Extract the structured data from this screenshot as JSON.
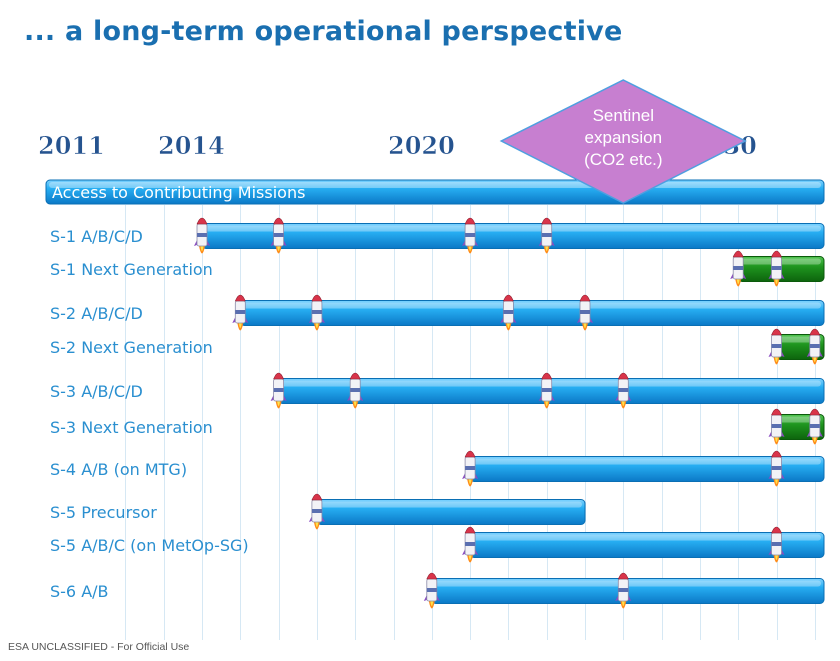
{
  "title": "... a long-term operational perspective",
  "footer": "ESA UNCLASSIFIED - For Official Use",
  "colors": {
    "title": "#1a6fb0",
    "label": "#2a8fd0",
    "year": "#25538f",
    "blue_bar": "#1da1ec",
    "green_bar": "#1f8f1f",
    "callout": "#c77fd0"
  },
  "chart_data": {
    "type": "gantt",
    "year_labels": [
      "2011",
      "2014",
      "2020",
      "2030"
    ],
    "callout": {
      "lines": [
        "Sentinel",
        "expansion",
        "(CO2 etc.)"
      ],
      "year": 2025
    },
    "header_bar": {
      "label": "Access to Contributing Missions",
      "start": 2011,
      "end": 2031
    },
    "rows": [
      {
        "label": "S-1 A/B/C/D",
        "start": 2014,
        "end": 2031,
        "color": "blue",
        "launches": [
          2014,
          2016,
          2021,
          2023
        ]
      },
      {
        "label": "S-1 Next Generation",
        "start": 2028,
        "end": 2031,
        "color": "green",
        "launches": [
          2028,
          2029
        ]
      },
      {
        "label": "S-2 A/B/C/D",
        "start": 2015,
        "end": 2031,
        "color": "blue",
        "launches": [
          2015,
          2017,
          2022,
          2024
        ]
      },
      {
        "label": "S-2 Next Generation",
        "start": 2029,
        "end": 2031,
        "color": "green",
        "launches": [
          2029,
          2030
        ]
      },
      {
        "label": "S-3 A/B/C/D",
        "start": 2016,
        "end": 2031,
        "color": "blue",
        "launches": [
          2016,
          2018,
          2023,
          2025
        ]
      },
      {
        "label": "S-3 Next Generation",
        "start": 2029,
        "end": 2031,
        "color": "green",
        "launches": [
          2029,
          2030
        ]
      },
      {
        "label": "S-4 A/B (on MTG)",
        "start": 2021,
        "end": 2031,
        "color": "blue",
        "launches": [
          2021,
          2029
        ]
      },
      {
        "label": "S-5 Precursor",
        "start": 2017,
        "end": 2024,
        "color": "blue",
        "launches": [
          2017
        ]
      },
      {
        "label": "S-5 A/B/C (on MetOp-SG)",
        "start": 2021,
        "end": 2031,
        "color": "blue",
        "launches": [
          2021,
          2029
        ]
      },
      {
        "label": "S-6 A/B",
        "start": 2020,
        "end": 2031,
        "color": "blue",
        "launches": [
          2020,
          2025
        ]
      }
    ]
  }
}
